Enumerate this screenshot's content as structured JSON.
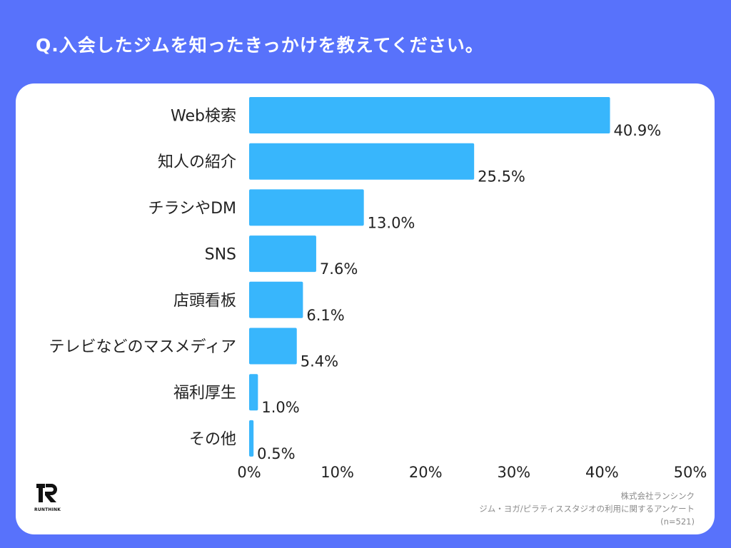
{
  "title": "Q.入会したジムを知ったきっかけを教えてください。",
  "chart_data": {
    "type": "bar",
    "orientation": "horizontal",
    "categories": [
      "Web検索",
      "知人の紹介",
      "チラシやDM",
      "SNS",
      "店頭看板",
      "テレビなどのマスメディア",
      "福利厚生",
      "その他"
    ],
    "values": [
      40.9,
      25.5,
      13.0,
      7.6,
      6.1,
      5.4,
      1.0,
      0.5
    ],
    "value_labels": [
      "40.9%",
      "25.5%",
      "13.0%",
      "7.6%",
      "6.1%",
      "5.4%",
      "1.0%",
      "0.5%"
    ],
    "xlim": [
      0,
      50
    ],
    "xticks": [
      0,
      10,
      20,
      30,
      40,
      50
    ],
    "xtick_labels": [
      "0%",
      "10%",
      "20%",
      "30%",
      "40%",
      "50%"
    ],
    "xlabel": "",
    "ylabel": "",
    "grid": false,
    "bar_color": "#38b6fc"
  },
  "colors": {
    "background": "#5872fb",
    "card": "#ffffff",
    "bar": "#38b6fc"
  },
  "logo": {
    "icon": "runthink-logo-icon",
    "text": "RUNTHINK"
  },
  "source": {
    "company": "株式会社ランシンク",
    "survey": "ジム・ヨガ/ピラティススタジオの利用に関するアンケート",
    "sample": "(n=521)"
  }
}
